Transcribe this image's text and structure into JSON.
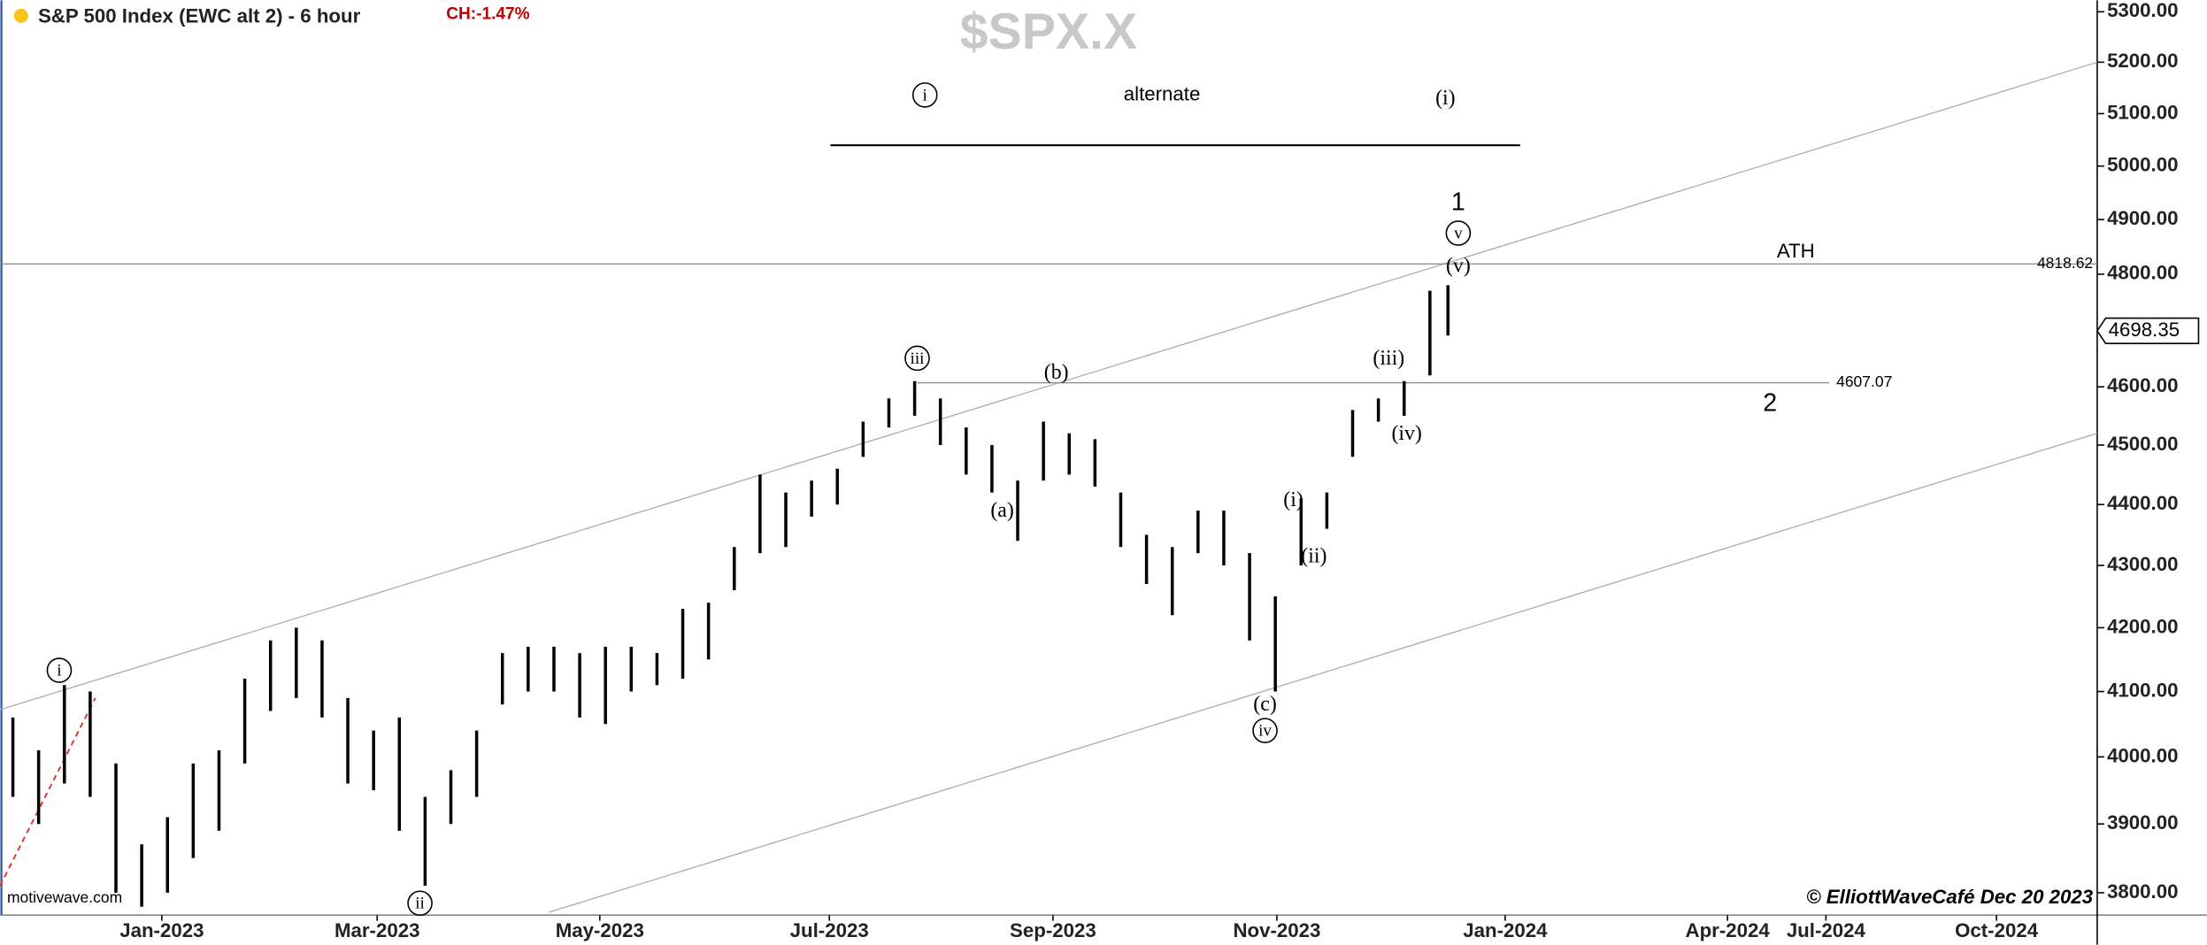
{
  "chart_data": {
    "type": "ohlc",
    "title": "S&P 500 Index (EWC alt 2) - 6 hour",
    "change": "CH:-1.47%",
    "symbol": "$SPX.X",
    "watermark": "motivewave.com",
    "credit": "© ElliottWaveCafé Dec 20 2023",
    "log_scale": true,
    "color": "#000000",
    "last_price": 4698.35,
    "xlim": [
      0,
      81.4
    ],
    "xticks": [
      {
        "value": 6.28,
        "label": "Jan-2023"
      },
      {
        "value": 14.64,
        "label": "Mar-2023"
      },
      {
        "value": 23.28,
        "label": "May-2023"
      },
      {
        "value": 32.19,
        "label": "Jul-2023"
      },
      {
        "value": 40.87,
        "label": "Sep-2023"
      },
      {
        "value": 49.56,
        "label": "Nov-2023"
      },
      {
        "value": 58.42,
        "label": "Jan-2024"
      },
      {
        "value": 67.05,
        "label": "Apr-2024"
      },
      {
        "value": 70.87,
        "label": "Jul-2024"
      },
      {
        "value": 77.49,
        "label": "Oct-2024"
      }
    ],
    "ylim": [
      3768,
      5323
    ],
    "yticks": [
      {
        "value": 3800,
        "label": "3800.00"
      },
      {
        "value": 3900,
        "label": "3900.00"
      },
      {
        "value": 4000,
        "label": "4000.00"
      },
      {
        "value": 4100,
        "label": "4100.00"
      },
      {
        "value": 4200,
        "label": "4200.00"
      },
      {
        "value": 4300,
        "label": "4300.00"
      },
      {
        "value": 4400,
        "label": "4400.00"
      },
      {
        "value": 4500,
        "label": "4500.00"
      },
      {
        "value": 4600,
        "label": "4600.00"
      },
      {
        "value": 4700,
        "label": "4700.00"
      },
      {
        "value": 4800,
        "label": "4800.00"
      },
      {
        "value": 4900,
        "label": "4900.00"
      },
      {
        "value": 5000,
        "label": "5000.00"
      },
      {
        "value": 5100,
        "label": "5100.00"
      },
      {
        "value": 5200,
        "label": "5200.00"
      },
      {
        "value": 5300,
        "label": "5300.00"
      }
    ],
    "x": [
      0.5,
      1.5,
      2.5,
      3.5,
      4.5,
      5.5,
      6.5,
      7.5,
      8.5,
      9.5,
      10.5,
      11.5,
      12.5,
      13.5,
      14.5,
      15.5,
      16.5,
      17.5,
      18.5,
      19.5,
      20.5,
      21.5,
      22.5,
      23.5,
      24.5,
      25.5,
      26.5,
      27.5,
      28.5,
      29.5,
      30.5,
      31.5,
      32.5,
      33.5,
      34.5,
      35.5,
      36.5,
      37.5,
      38.5,
      39.5,
      40.5,
      41.5,
      42.5,
      43.5,
      44.5,
      45.5,
      46.5,
      47.5,
      48.5,
      49.5,
      50.5,
      51.5,
      52.5,
      53.5,
      54.5,
      55.5,
      56.2
    ],
    "high": [
      4060,
      4010,
      4110,
      4100,
      3990,
      3870,
      3910,
      3990,
      4010,
      4120,
      4180,
      4200,
      4180,
      4090,
      4040,
      4060,
      3940,
      3980,
      4040,
      4160,
      4170,
      4170,
      4160,
      4170,
      4170,
      4160,
      4230,
      4240,
      4330,
      4450,
      4420,
      4440,
      4460,
      4540,
      4580,
      4610,
      4580,
      4530,
      4500,
      4440,
      4540,
      4520,
      4510,
      4420,
      4350,
      4330,
      4390,
      4390,
      4320,
      4250,
      4410,
      4420,
      4560,
      4580,
      4610,
      4770,
      4780
    ],
    "low": [
      3940,
      3900,
      3960,
      3940,
      3800,
      3780,
      3800,
      3850,
      3890,
      3990,
      4070,
      4090,
      4060,
      3960,
      3950,
      3890,
      3810,
      3900,
      3940,
      4080,
      4100,
      4100,
      4060,
      4050,
      4100,
      4110,
      4120,
      4150,
      4260,
      4320,
      4330,
      4380,
      4400,
      4480,
      4530,
      4550,
      4500,
      4450,
      4420,
      4340,
      4440,
      4450,
      4430,
      4330,
      4270,
      4220,
      4320,
      4300,
      4180,
      4100,
      4300,
      4360,
      4480,
      4540,
      4550,
      4620,
      4690
    ],
    "hlines": [
      {
        "value": 4818.62,
        "x": [
          0,
          81.4
        ]
      },
      {
        "value": 4607.07,
        "x": [
          35.6,
          71.0
        ]
      }
    ],
    "trendlines": [
      {
        "x": [
          0,
          81.4
        ],
        "y": [
          4072,
          5200
        ],
        "color": "#aaaaaa"
      },
      {
        "x": [
          21.3,
          81.4
        ],
        "y": [
          3772,
          4520
        ],
        "color": "#aaaaaa"
      },
      {
        "x": [
          0,
          3.7
        ],
        "y": [
          3810,
          4090
        ],
        "color": "#e03030",
        "dashed": true
      }
    ],
    "annotations": [
      {
        "text": "i",
        "x": 2.3,
        "y": 4133,
        "circled": true
      },
      {
        "text": "ii",
        "x": 16.3,
        "y": 3785,
        "circled": true
      },
      {
        "text": "iii",
        "x": 35.6,
        "y": 4650,
        "circled": true
      },
      {
        "text": "(a)",
        "x": 38.9,
        "y": 4390
      },
      {
        "text": "(b)",
        "x": 41.0,
        "y": 4625
      },
      {
        "text": "(c)",
        "x": 49.1,
        "y": 4080
      },
      {
        "text": "iv",
        "x": 49.1,
        "y": 4040,
        "circled": true
      },
      {
        "text": "(i)",
        "x": 50.2,
        "y": 4408
      },
      {
        "text": "(ii)",
        "x": 51.0,
        "y": 4315
      },
      {
        "text": "(iii)",
        "x": 53.9,
        "y": 4650
      },
      {
        "text": "(iv)",
        "x": 54.6,
        "y": 4520
      },
      {
        "text": "(v)",
        "x": 56.6,
        "y": 4815
      },
      {
        "text": "v",
        "x": 56.6,
        "y": 4875,
        "circled": true
      },
      {
        "text": "1",
        "x": 56.6,
        "y": 4930
      },
      {
        "text": "ATH",
        "x": 69.7,
        "y": 4840
      },
      {
        "text": "2",
        "x": 68.7,
        "y": 4570
      },
      {
        "text": "i",
        "x": 35.9,
        "y": 5136,
        "circled": true
      },
      {
        "text": "alternate",
        "x": 45.1,
        "y": 5136
      },
      {
        "text": "(i)",
        "x": 56.1,
        "y": 5130
      }
    ]
  }
}
